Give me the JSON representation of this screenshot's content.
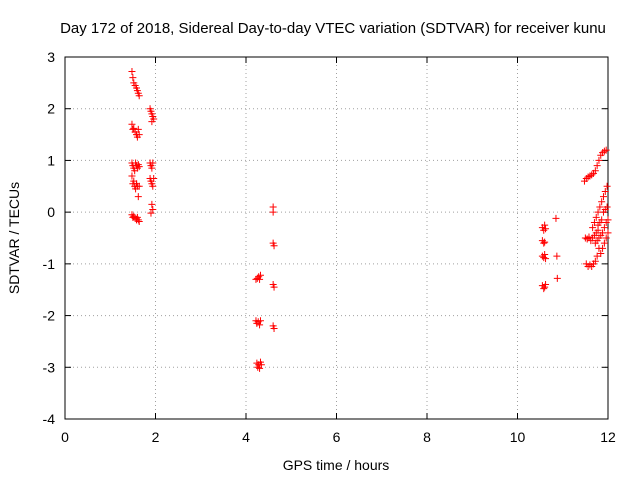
{
  "chart_data": {
    "type": "scatter",
    "title": "Day 172 of 2018, Sidereal Day-to-day VTEC variation (SDTVAR) for receiver kunu",
    "xlabel": "GPS time / hours",
    "ylabel": "SDTVAR / TECUs",
    "xlim": [
      0,
      12
    ],
    "ylim": [
      -4,
      3
    ],
    "xticks": [
      "0",
      "2",
      "4",
      "6",
      "8",
      "10",
      "12"
    ],
    "yticks": [
      "-4",
      "-3",
      "-2",
      "-1",
      "0",
      "1",
      "2",
      "3"
    ],
    "grid": true,
    "marker": "plus",
    "color": "#ff0000",
    "points": [
      [
        1.48,
        2.72
      ],
      [
        1.5,
        2.6
      ],
      [
        1.52,
        2.5
      ],
      [
        1.55,
        2.45
      ],
      [
        1.58,
        2.4
      ],
      [
        1.6,
        2.35
      ],
      [
        1.62,
        2.3
      ],
      [
        1.64,
        2.25
      ],
      [
        1.48,
        1.7
      ],
      [
        1.5,
        1.6
      ],
      [
        1.52,
        1.62
      ],
      [
        1.55,
        1.55
      ],
      [
        1.58,
        1.5
      ],
      [
        1.6,
        1.45
      ],
      [
        1.62,
        1.6
      ],
      [
        1.64,
        1.5
      ],
      [
        1.48,
        0.95
      ],
      [
        1.5,
        0.9
      ],
      [
        1.52,
        0.85
      ],
      [
        1.54,
        0.8
      ],
      [
        1.56,
        0.95
      ],
      [
        1.58,
        0.9
      ],
      [
        1.6,
        0.85
      ],
      [
        1.62,
        0.92
      ],
      [
        1.64,
        0.88
      ],
      [
        1.48,
        0.7
      ],
      [
        1.5,
        0.55
      ],
      [
        1.52,
        0.6
      ],
      [
        1.54,
        0.5
      ],
      [
        1.56,
        0.45
      ],
      [
        1.58,
        0.55
      ],
      [
        1.6,
        0.5
      ],
      [
        1.62,
        0.3
      ],
      [
        1.64,
        0.5
      ],
      [
        1.48,
        -0.05
      ],
      [
        1.5,
        -0.1
      ],
      [
        1.52,
        -0.08
      ],
      [
        1.55,
        -0.12
      ],
      [
        1.58,
        -0.15
      ],
      [
        1.6,
        -0.1
      ],
      [
        1.62,
        -0.15
      ],
      [
        1.64,
        -0.18
      ],
      [
        1.88,
        2.0
      ],
      [
        1.9,
        1.95
      ],
      [
        1.92,
        1.9
      ],
      [
        1.94,
        1.85
      ],
      [
        1.96,
        1.8
      ],
      [
        1.92,
        1.75
      ],
      [
        1.88,
        0.95
      ],
      [
        1.9,
        0.9
      ],
      [
        1.92,
        0.85
      ],
      [
        1.94,
        0.95
      ],
      [
        1.88,
        0.65
      ],
      [
        1.9,
        0.6
      ],
      [
        1.92,
        0.55
      ],
      [
        1.94,
        0.5
      ],
      [
        1.96,
        0.65
      ],
      [
        1.92,
        0.15
      ],
      [
        1.94,
        0.05
      ],
      [
        1.9,
        -0.02
      ],
      [
        4.22,
        -1.3
      ],
      [
        4.25,
        -1.28
      ],
      [
        4.28,
        -1.25
      ],
      [
        4.3,
        -1.3
      ],
      [
        4.32,
        -1.22
      ],
      [
        4.22,
        -2.1
      ],
      [
        4.24,
        -2.15
      ],
      [
        4.27,
        -2.12
      ],
      [
        4.3,
        -2.18
      ],
      [
        4.32,
        -2.1
      ],
      [
        4.24,
        -2.92
      ],
      [
        4.26,
        -3.0
      ],
      [
        4.28,
        -2.95
      ],
      [
        4.3,
        -3.02
      ],
      [
        4.32,
        -2.9
      ],
      [
        4.34,
        -2.95
      ],
      [
        4.6,
        0.1
      ],
      [
        4.6,
        0.0
      ],
      [
        4.6,
        -0.6
      ],
      [
        4.62,
        -0.65
      ],
      [
        4.6,
        -1.4
      ],
      [
        4.62,
        -1.45
      ],
      [
        4.6,
        -2.2
      ],
      [
        4.62,
        -2.25
      ],
      [
        10.55,
        -0.3
      ],
      [
        10.58,
        -0.35
      ],
      [
        10.6,
        -0.25
      ],
      [
        10.62,
        -0.32
      ],
      [
        10.55,
        -0.55
      ],
      [
        10.58,
        -0.6
      ],
      [
        10.6,
        -0.58
      ],
      [
        10.55,
        -0.85
      ],
      [
        10.58,
        -0.88
      ],
      [
        10.6,
        -0.82
      ],
      [
        10.62,
        -0.9
      ],
      [
        10.55,
        -1.42
      ],
      [
        10.58,
        -1.48
      ],
      [
        10.6,
        -1.45
      ],
      [
        10.62,
        -1.4
      ],
      [
        10.85,
        -0.12
      ],
      [
        10.87,
        -0.85
      ],
      [
        10.88,
        -1.28
      ],
      [
        11.48,
        0.6
      ],
      [
        11.52,
        0.65
      ],
      [
        11.56,
        0.68
      ],
      [
        11.6,
        0.7
      ],
      [
        11.64,
        0.72
      ],
      [
        11.68,
        0.75
      ],
      [
        11.72,
        0.8
      ],
      [
        11.76,
        0.9
      ],
      [
        11.8,
        1.0
      ],
      [
        11.84,
        1.1
      ],
      [
        11.88,
        1.15
      ],
      [
        11.92,
        1.18
      ],
      [
        11.96,
        1.2
      ],
      [
        11.5,
        -0.5
      ],
      [
        11.54,
        -0.52
      ],
      [
        11.58,
        -0.48
      ],
      [
        11.62,
        -0.55
      ],
      [
        11.66,
        -0.5
      ],
      [
        11.7,
        -0.45
      ],
      [
        11.74,
        -0.4
      ],
      [
        11.78,
        -0.35
      ],
      [
        11.52,
        -1.0
      ],
      [
        11.56,
        -1.05
      ],
      [
        11.6,
        -1.02
      ],
      [
        11.64,
        -1.05
      ],
      [
        11.68,
        -1.0
      ],
      [
        11.72,
        -0.95
      ],
      [
        11.76,
        -0.85
      ],
      [
        11.8,
        -0.7
      ],
      [
        11.66,
        -0.3
      ],
      [
        11.7,
        -0.2
      ],
      [
        11.74,
        -0.1
      ],
      [
        11.78,
        0.0
      ],
      [
        11.82,
        0.1
      ],
      [
        11.86,
        0.2
      ],
      [
        11.9,
        0.3
      ],
      [
        11.94,
        0.4
      ],
      [
        11.98,
        0.5
      ],
      [
        11.72,
        -0.6
      ],
      [
        11.76,
        -0.55
      ],
      [
        11.8,
        -0.5
      ],
      [
        11.84,
        -0.45
      ],
      [
        11.88,
        -0.4
      ],
      [
        11.92,
        -0.3
      ],
      [
        11.96,
        -0.2
      ],
      [
        12.0,
        -0.15
      ],
      [
        11.78,
        -0.25
      ],
      [
        11.82,
        -0.2
      ],
      [
        11.86,
        -0.15
      ],
      [
        11.9,
        0.0
      ],
      [
        11.94,
        0.05
      ],
      [
        11.98,
        0.1
      ],
      [
        11.84,
        -0.8
      ],
      [
        11.88,
        -0.7
      ],
      [
        11.92,
        -0.6
      ],
      [
        11.96,
        -0.5
      ],
      [
        12.0,
        -0.4
      ]
    ]
  }
}
